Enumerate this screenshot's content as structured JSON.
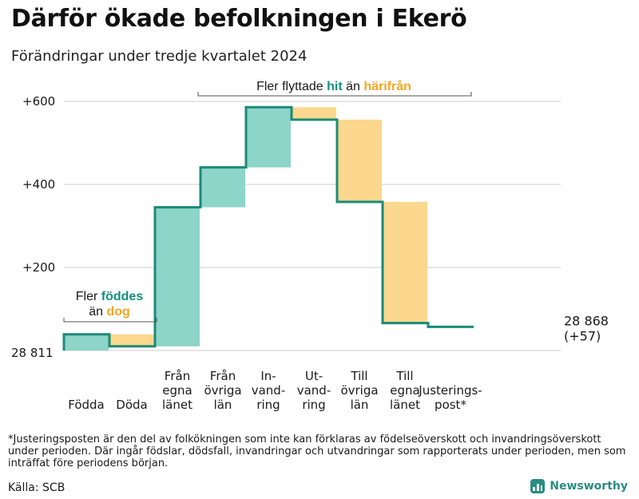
{
  "title": "Därför ökade befolkningen i Ekerö",
  "subtitle": "Förändringar under tredje kvartalet 2024",
  "footnote": "*Justeringsposten är den del av folkökningen som inte kan förklaras av födelseöverskott och invandringsöverskott under perioden. Där ingår födslar, dödsfall, invandringar och utvandringar som rapporterats under perioden, men som inträffat före periodens början.",
  "source": "Källa: SCB",
  "brand": "Newsworthy",
  "colors": {
    "increase_fill": "#8dd4c9",
    "decrease_fill": "#fbd88d",
    "line": "#1b8a78",
    "teal_text": "#159080",
    "orange_text": "#f5a623"
  },
  "chart_data": {
    "type": "waterfall",
    "start_value": 28811,
    "start_label": "28 811",
    "end_label": "28 868",
    "end_change_label": "(+57)",
    "y_tick_labels": [
      "+200",
      "+400",
      "+600"
    ],
    "y_ticks": [
      200,
      400,
      600
    ],
    "ylim": [
      -10,
      640
    ],
    "steps": [
      {
        "label": [
          "Födda"
        ],
        "change": 39
      },
      {
        "label": [
          "Döda"
        ],
        "change": -29
      },
      {
        "label": [
          "Från",
          "egna",
          "länet"
        ],
        "change": 335
      },
      {
        "label": [
          "Från",
          "övriga",
          "län"
        ],
        "change": 96
      },
      {
        "label": [
          "In-",
          "vand-",
          "ring"
        ],
        "change": 145
      },
      {
        "label": [
          "Ut-",
          "vand-",
          "ring"
        ],
        "change": -30
      },
      {
        "label": [
          "Till",
          "övriga",
          "län"
        ],
        "change": -198
      },
      {
        "label": [
          "Till",
          "egna",
          "länet"
        ],
        "change": -292
      },
      {
        "label": [
          "Justerings-",
          "post*"
        ],
        "change": -9
      }
    ],
    "final_change": 57,
    "annotations": {
      "births": {
        "prefix": "Fler",
        "highlight1": "föddes",
        "middle": "än",
        "highlight2": "dog"
      },
      "migration": {
        "prefix": "Fler flyttade",
        "highlight1": "hit",
        "middle": "än",
        "highlight2": "härifrån"
      }
    },
    "grid": true
  }
}
